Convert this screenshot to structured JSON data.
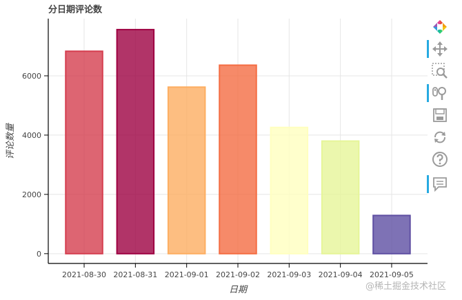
{
  "chart_data": {
    "type": "bar",
    "title": "分日期评论数",
    "xlabel": "日期",
    "ylabel": "评论数量",
    "categories": [
      "2021-08-30",
      "2021-08-31",
      "2021-09-01",
      "2021-09-02",
      "2021-09-03",
      "2021-09-04",
      "2021-09-05"
    ],
    "values": [
      6830,
      7560,
      5620,
      6360,
      4260,
      3800,
      1290
    ],
    "colors": [
      "#d53e4f",
      "#9e0142",
      "#fdae61",
      "#f46d43",
      "#ffffbf",
      "#e6f598",
      "#5e4fa2"
    ],
    "yticks": [
      0,
      2000,
      4000,
      6000
    ],
    "yticklabels": [
      "0",
      "2000",
      "4000",
      "6000"
    ],
    "ylim": [
      -330,
      7930
    ],
    "grid": true,
    "legend": "none"
  },
  "toolbar": {
    "tools": [
      {
        "name": "bokeh-logo-icon",
        "interactive": true
      },
      {
        "name": "pan-icon",
        "interactive": true
      },
      {
        "name": "box-zoom-icon",
        "interactive": true
      },
      {
        "name": "wheel-zoom-icon",
        "interactive": true
      },
      {
        "name": "save-icon",
        "interactive": true
      },
      {
        "name": "reset-icon",
        "interactive": true
      },
      {
        "name": "help-icon",
        "interactive": true
      },
      {
        "name": "hover-icon",
        "interactive": true
      }
    ]
  },
  "watermark": "@稀土掘金技术社区"
}
